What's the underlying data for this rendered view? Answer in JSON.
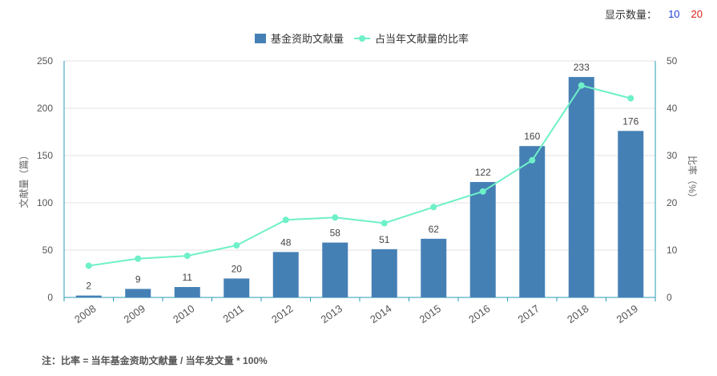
{
  "display_count": {
    "label": "显示数量：",
    "options": [
      "10",
      "20"
    ]
  },
  "chart_data": {
    "type": "bar+line",
    "categories": [
      "2008",
      "2009",
      "2010",
      "2011",
      "2012",
      "2013",
      "2014",
      "2015",
      "2016",
      "2017",
      "2018",
      "2019"
    ],
    "series": [
      {
        "name": "基金资助文献量",
        "type": "bar",
        "axis": "left",
        "color": "#4580b5",
        "values": [
          2,
          9,
          11,
          20,
          48,
          58,
          51,
          62,
          122,
          160,
          233,
          176
        ]
      },
      {
        "name": "占当年文献量的比率",
        "type": "line",
        "axis": "right",
        "color": "#6ef0c8",
        "values": [
          6.7,
          8.2,
          8.8,
          11.0,
          16.4,
          16.9,
          15.7,
          19.1,
          22.4,
          29.0,
          44.8,
          42.1
        ]
      }
    ],
    "ylabel_left": "文献量（篇）",
    "ylabel_right": "比率（%）",
    "ylim_left": [
      0,
      250
    ],
    "ylim_right": [
      0,
      50
    ],
    "yticks_left": [
      "0",
      "50",
      "100",
      "150",
      "200",
      "250"
    ],
    "yticks_right": [
      "0",
      "10",
      "20",
      "30",
      "40",
      "50"
    ],
    "grid": true,
    "legend_position": "top-center"
  },
  "footnote": "注：比率 = 当年基金资助文献量 / 当年发文量 * 100%"
}
